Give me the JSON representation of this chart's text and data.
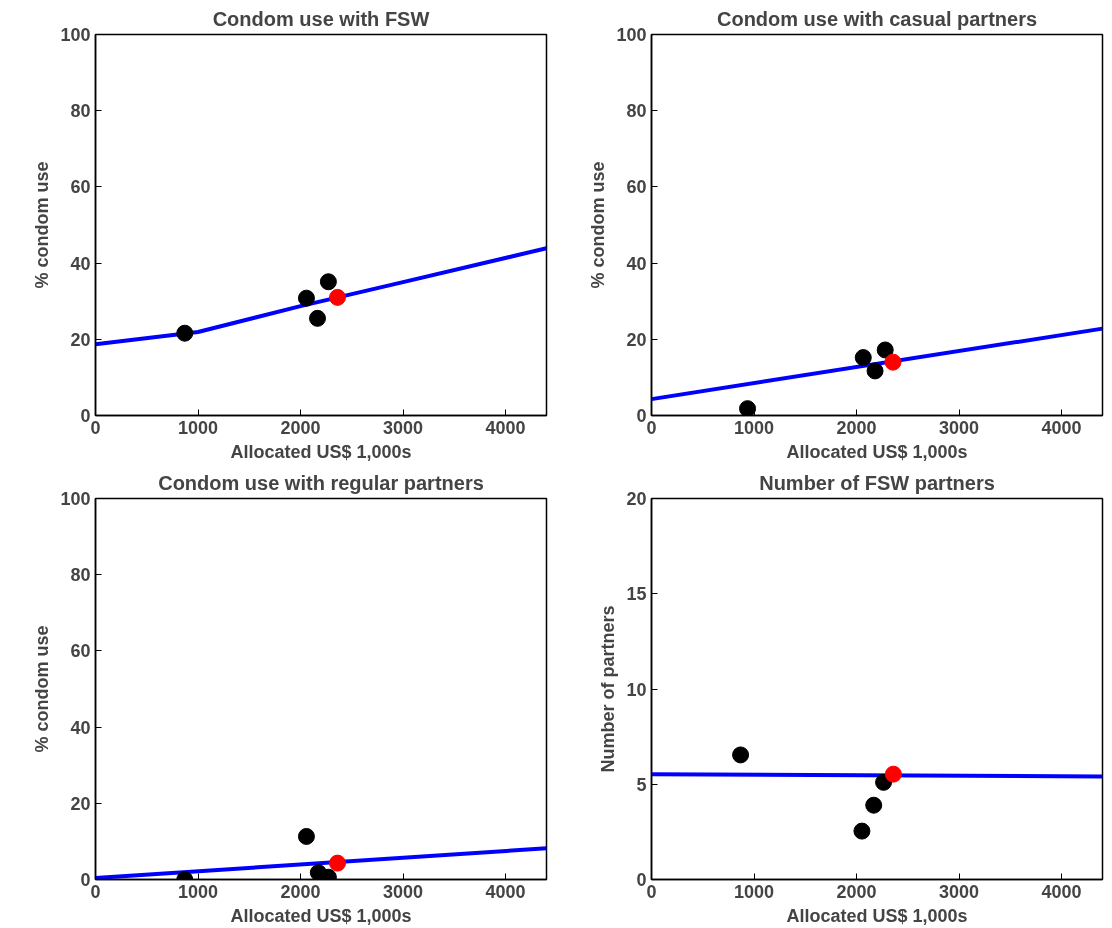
{
  "chart_data": [
    {
      "type": "scatter",
      "title": "Condom use with FSW",
      "xlabel": "Allocated US$ 1,000s",
      "ylabel": "% condom use",
      "xlim": [
        0,
        4400
      ],
      "xticks": [
        0,
        1000,
        2000,
        3000,
        4000
      ],
      "ylim": [
        0,
        100
      ],
      "yticks": [
        0,
        20,
        40,
        60,
        80,
        100
      ],
      "series": [
        {
          "type": "line",
          "marker": "none",
          "color": "#0000ff",
          "x": [
            0,
            1000,
            2000,
            3000,
            4400
          ],
          "values": [
            18.7,
            21.9,
            28.7,
            35.0,
            43.9
          ]
        },
        {
          "marker": "circle",
          "color": "#000000",
          "x": [
            871,
            2058,
            2166,
            2272
          ],
          "values": [
            21.6,
            30.8,
            25.5,
            35.1
          ]
        },
        {
          "marker": "circle",
          "color": "#ff0000",
          "x": [
            2361
          ],
          "values": [
            31.0
          ]
        }
      ]
    },
    {
      "type": "scatter",
      "title": "Condom use with casual partners",
      "xlabel": "Allocated US$ 1,000s",
      "ylabel": "% condom use",
      "xlim": [
        0,
        4400
      ],
      "xticks": [
        0,
        1000,
        2000,
        3000,
        4000
      ],
      "ylim": [
        0,
        100
      ],
      "yticks": [
        0,
        20,
        40,
        60,
        80,
        100
      ],
      "series": [
        {
          "type": "line",
          "marker": "none",
          "color": "#0000ff",
          "x": [
            0,
            4400
          ],
          "values": [
            4.3,
            22.8
          ]
        },
        {
          "marker": "circle",
          "color": "#000000",
          "x": [
            937,
            2066,
            2181,
            2280
          ],
          "values": [
            1.8,
            15.2,
            11.7,
            17.2
          ]
        },
        {
          "marker": "circle",
          "color": "#ff0000",
          "x": [
            2356
          ],
          "values": [
            14.0
          ]
        }
      ]
    },
    {
      "type": "scatter",
      "title": "Condom use with regular partners",
      "xlabel": "Allocated US$ 1,000s",
      "ylabel": "% condom use",
      "xlim": [
        0,
        4400
      ],
      "xticks": [
        0,
        1000,
        2000,
        3000,
        4000
      ],
      "ylim": [
        0,
        100
      ],
      "yticks": [
        0,
        20,
        40,
        60,
        80,
        100
      ],
      "series": [
        {
          "type": "line",
          "marker": "none",
          "color": "#0000ff",
          "x": [
            0,
            4400
          ],
          "values": [
            0.4,
            8.2
          ]
        },
        {
          "marker": "circle",
          "color": "#000000",
          "x": [
            871,
            2058,
            2174,
            2272
          ],
          "values": [
            0.0,
            11.3,
            1.8,
            0.6
          ]
        },
        {
          "marker": "circle",
          "color": "#ff0000",
          "x": [
            2361
          ],
          "values": [
            4.3
          ]
        }
      ]
    },
    {
      "type": "scatter",
      "title": "Number of FSW partners",
      "xlabel": "Allocated US$ 1,000s",
      "ylabel": "Number of partners",
      "xlim": [
        0,
        4400
      ],
      "xticks": [
        0,
        1000,
        2000,
        3000,
        4000
      ],
      "ylim": [
        0,
        20
      ],
      "yticks": [
        0,
        5,
        10,
        15,
        20
      ],
      "series": [
        {
          "type": "line",
          "marker": "none",
          "color": "#0000ff",
          "x": [
            0,
            4400
          ],
          "values": [
            5.53,
            5.41
          ]
        },
        {
          "marker": "circle",
          "color": "#000000",
          "x": [
            869,
            2053,
            2168,
            2264
          ],
          "values": [
            6.54,
            2.54,
            3.9,
            5.1
          ]
        },
        {
          "marker": "circle",
          "color": "#ff0000",
          "x": [
            2360
          ],
          "values": [
            5.53
          ]
        }
      ]
    }
  ]
}
